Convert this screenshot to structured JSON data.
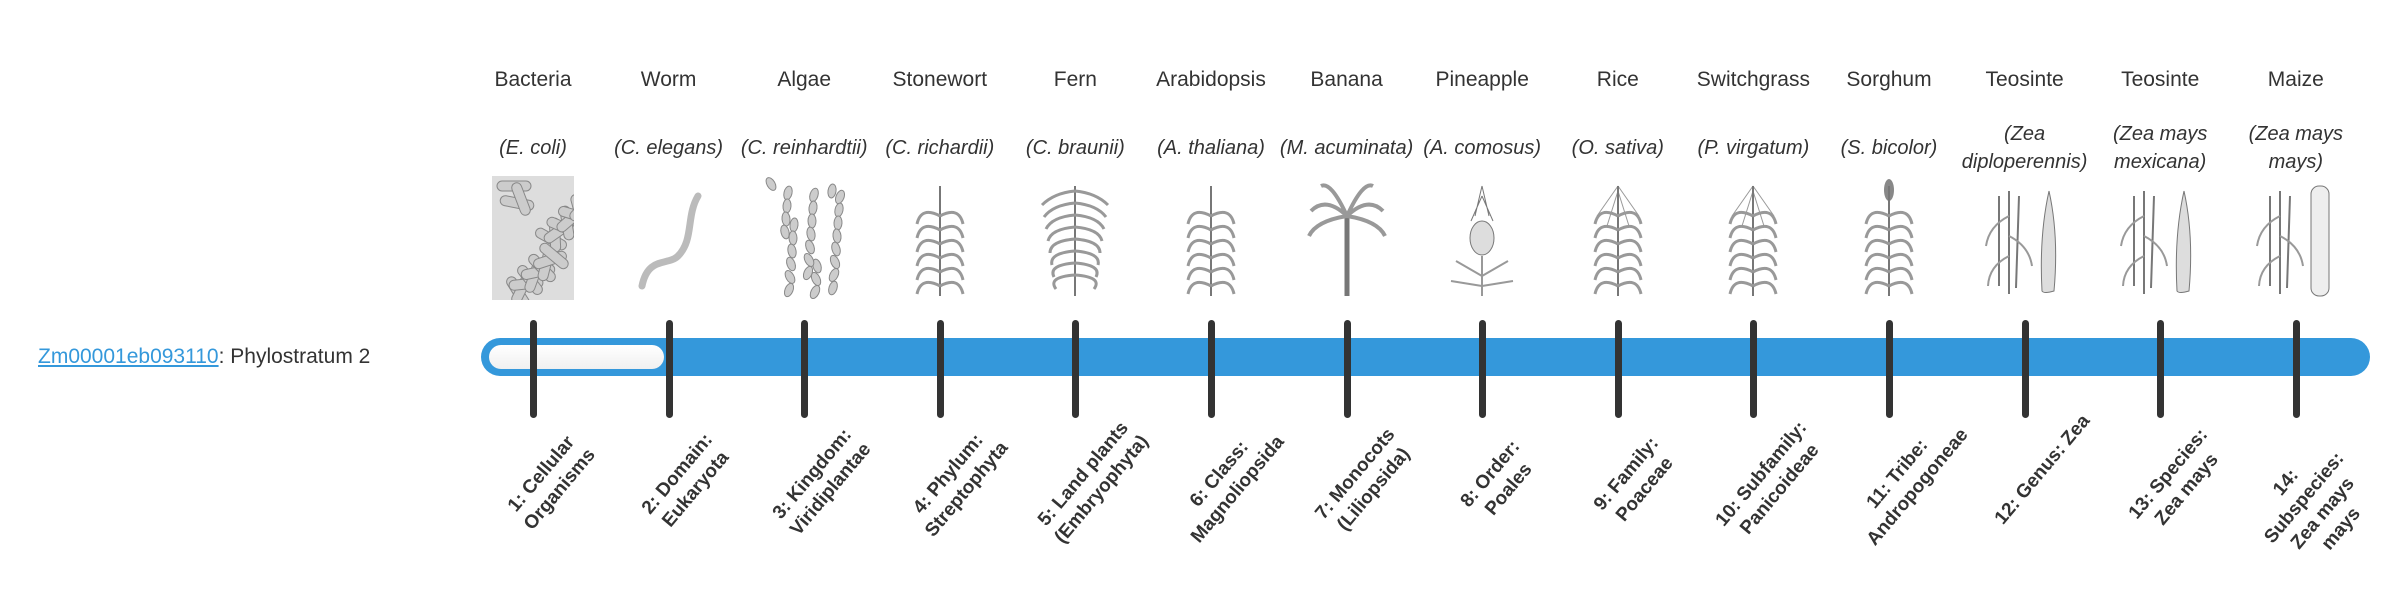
{
  "gene": {
    "id": "Zm00001eb093110",
    "suffix": ": Phylostratum 2"
  },
  "current_stratum": 2,
  "colors": {
    "bar": "#3498db",
    "tick": "#333333",
    "link": "#3498db"
  },
  "organisms": [
    {
      "common": "Bacteria",
      "scientific": "(E. coli)",
      "icon": "bacteria-icon",
      "stratum": "1: Cellular Organisms"
    },
    {
      "common": "Worm",
      "scientific": "(C. elegans)",
      "icon": "worm-icon",
      "stratum": "2: Domain: Eukaryota"
    },
    {
      "common": "Algae",
      "scientific": "(C. reinhardtii)",
      "icon": "algae-icon",
      "stratum": "3: Kingdom: Viridiplantae"
    },
    {
      "common": "Stonewort",
      "scientific": "(C. richardii)",
      "icon": "stonewort-icon",
      "stratum": "4: Phylum: Streptophyta"
    },
    {
      "common": "Fern",
      "scientific": "(C. braunii)",
      "icon": "fern-icon",
      "stratum": "5: Land plants (Embryophyta)"
    },
    {
      "common": "Arabidopsis",
      "scientific": "(A. thaliana)",
      "icon": "arabidopsis-icon",
      "stratum": "6: Class: Magnoliopsida"
    },
    {
      "common": "Banana",
      "scientific": "(M. acuminata)",
      "icon": "banana-icon",
      "stratum": "7: Monocots (Liliopsida)"
    },
    {
      "common": "Pineapple",
      "scientific": "(A. comosus)",
      "icon": "pineapple-icon",
      "stratum": "8: Order: Poales"
    },
    {
      "common": "Rice",
      "scientific": "(O. sativa)",
      "icon": "rice-icon",
      "stratum": "9: Family: Poaceae"
    },
    {
      "common": "Switchgrass",
      "scientific": "(P. virgatum)",
      "icon": "switchgrass-icon",
      "stratum": "10: Subfamily: Panicoideae"
    },
    {
      "common": "Sorghum",
      "scientific": "(S. bicolor)",
      "icon": "sorghum-icon",
      "stratum": "11: Tribe: Andropogoneae"
    },
    {
      "common": "Teosinte",
      "scientific": "(Zea diploperennis)",
      "icon": "teosinte-icon",
      "stratum": "12: Genus: Zea"
    },
    {
      "common": "Teosinte",
      "scientific": "(Zea mays mexicana)",
      "icon": "teosinte-icon",
      "stratum": "13: Species: Zea mays"
    },
    {
      "common": "Maize",
      "scientific": "(Zea mays mays)",
      "icon": "maize-icon",
      "stratum": "14: Subspecies: Zea mays mays"
    }
  ]
}
